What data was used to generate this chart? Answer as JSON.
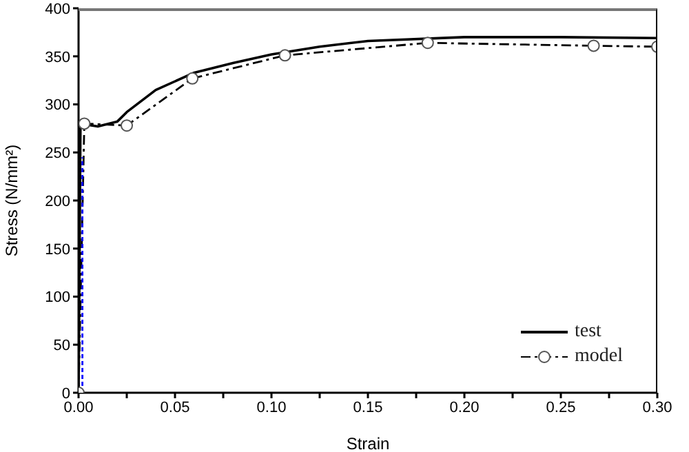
{
  "chart_data": {
    "type": "line",
    "xlabel": "Strain",
    "ylabel": "Stress (N/mm²)",
    "xlim": [
      0,
      0.3
    ],
    "ylim": [
      0,
      400
    ],
    "xticks": [
      {
        "value": 0,
        "label": "0.00"
      },
      {
        "value": 0.025,
        "label": null
      },
      {
        "value": 0.05,
        "label": "0.05"
      },
      {
        "value": 0.075,
        "label": null
      },
      {
        "value": 0.1,
        "label": "0.10"
      },
      {
        "value": 0.125,
        "label": null
      },
      {
        "value": 0.15,
        "label": "0.15"
      },
      {
        "value": 0.175,
        "label": null
      },
      {
        "value": 0.2,
        "label": "0.20"
      },
      {
        "value": 0.225,
        "label": null
      },
      {
        "value": 0.25,
        "label": "0.25"
      },
      {
        "value": 0.275,
        "label": null
      },
      {
        "value": 0.3,
        "label": "0.30"
      }
    ],
    "yticks": [
      0,
      50,
      100,
      150,
      200,
      250,
      300,
      350,
      400
    ],
    "legend": "bottom right",
    "series": [
      {
        "name": "test",
        "color": "#000000",
        "line_style": "solid",
        "marker": "none",
        "x": [
          0,
          0.001,
          0.01,
          0.02,
          0.025,
          0.04,
          0.06,
          0.08,
          0.1,
          0.125,
          0.15,
          0.2,
          0.25,
          0.3
        ],
        "values": [
          0,
          280,
          277,
          282,
          292,
          315,
          333,
          343,
          352,
          360,
          366,
          370,
          370,
          369
        ]
      },
      {
        "name": "model",
        "color": "#000000",
        "line_style": "dashed",
        "marker": "circle",
        "x": [
          0,
          0.003,
          0.025,
          0.059,
          0.107,
          0.181,
          0.267,
          0.3
        ],
        "values": [
          0,
          280,
          278,
          327,
          351,
          364,
          361,
          360
        ]
      },
      {
        "color": "#0000ff",
        "line_style": "dotted",
        "marker": "none",
        "x": [
          0.002,
          0.002
        ],
        "values": [
          0,
          245
        ]
      }
    ]
  }
}
